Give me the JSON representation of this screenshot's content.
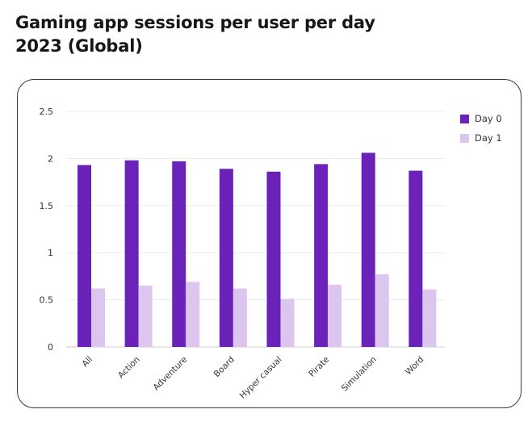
{
  "title_lines": [
    "Gaming app sessions per user per day",
    "2023 (Global)"
  ],
  "legend": {
    "items": [
      {
        "label": "Day 0",
        "color": "#6a22b8"
      },
      {
        "label": "Day 1",
        "color": "#dcc5ef"
      }
    ]
  },
  "chart_data": {
    "type": "bar",
    "title": "Gaming app sessions per user per day 2023 (Global)",
    "xlabel": "",
    "ylabel": "",
    "categories": [
      "All",
      "Action",
      "Adventure",
      "Board",
      "Hyper casual",
      "Pirate",
      "Simulation",
      "Word"
    ],
    "series": [
      {
        "name": "Day 0",
        "color": "#6a22b8",
        "values": [
          1.93,
          1.98,
          1.97,
          1.89,
          1.86,
          1.94,
          2.06,
          1.87
        ]
      },
      {
        "name": "Day 1",
        "color": "#dcc5ef",
        "values": [
          0.62,
          0.65,
          0.69,
          0.62,
          0.51,
          0.66,
          0.77,
          0.61
        ]
      }
    ],
    "ylim": [
      0,
      2.5
    ],
    "yticks": [
      "0",
      "0.5",
      "1",
      "1.5",
      "2",
      "2.5"
    ],
    "ytick_values": [
      0,
      0.5,
      1,
      1.5,
      2,
      2.5
    ],
    "grid": true,
    "legend_position": "top-right"
  }
}
